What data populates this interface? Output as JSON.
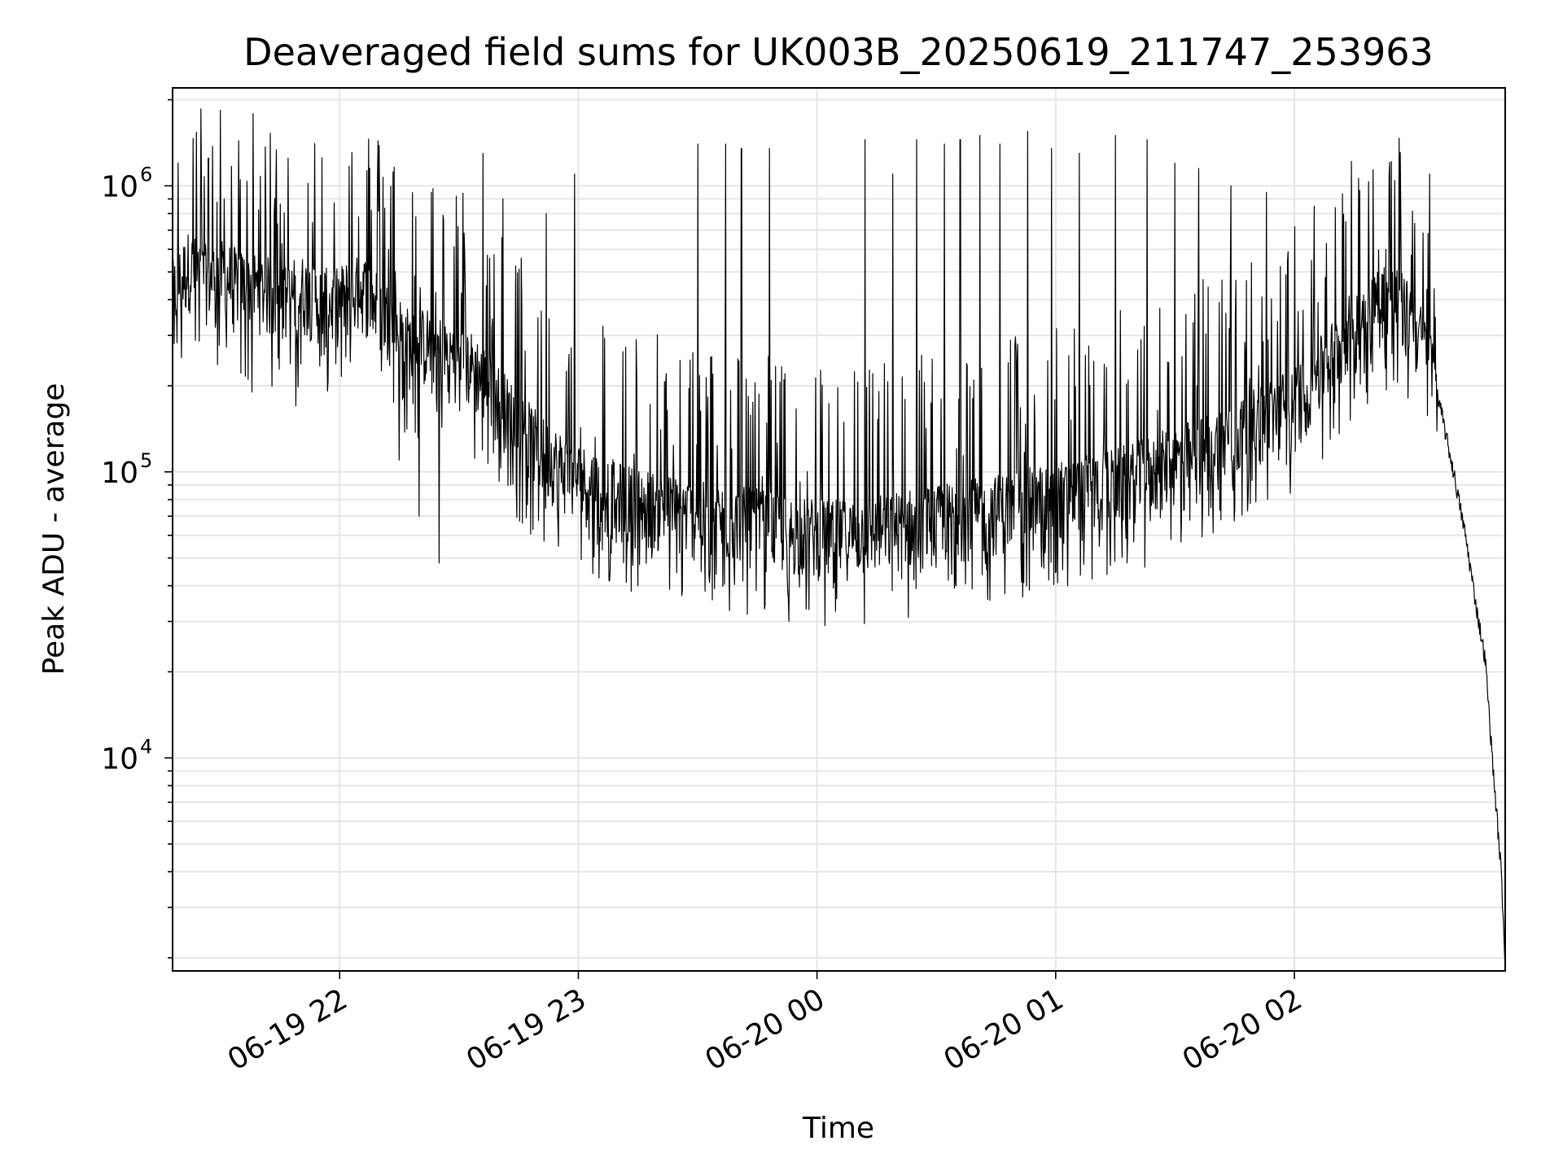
{
  "chart_data": {
    "type": "line",
    "title": "Deaveraged field sums for UK003B_20250619_211747_253963",
    "xlabel": "Time",
    "ylabel": "Peak ADU - average",
    "yscale": "log",
    "grid": true,
    "legend": "none",
    "line_color": "#000000",
    "grid_color": "#e6e6e6",
    "xlim": [
      "2025-06-19T21:18:00",
      "2025-06-20T02:53:00"
    ],
    "ylim": [
      1800,
      2200000
    ],
    "x_ticks": [
      {
        "value": "2025-06-19T22:00:00",
        "label": "06-19 22"
      },
      {
        "value": "2025-06-19T23:00:00",
        "label": "06-19 23"
      },
      {
        "value": "2025-06-20T00:00:00",
        "label": "06-20 00"
      },
      {
        "value": "2025-06-20T01:00:00",
        "label": "06-20 01"
      },
      {
        "value": "2025-06-20T02:00:00",
        "label": "06-20 02"
      }
    ],
    "y_ticks": [
      {
        "value": 10000,
        "base": "10",
        "exp": "4"
      },
      {
        "value": 100000,
        "base": "10",
        "exp": "5"
      },
      {
        "value": 1000000,
        "base": "10",
        "exp": "6"
      }
    ],
    "series": [
      {
        "values": [
          [
            "2025-06-19T21:18:00",
            380000
          ],
          [
            "2025-06-19T21:22:00",
            480000
          ],
          [
            "2025-06-19T21:26:00",
            430000
          ],
          [
            "2025-06-19T21:30:00",
            450000
          ],
          [
            "2025-06-19T21:34:00",
            420000
          ],
          [
            "2025-06-19T21:38:00",
            410000
          ],
          [
            "2025-06-19T21:42:00",
            390000
          ],
          [
            "2025-06-19T21:46:00",
            360000
          ],
          [
            "2025-06-19T21:50:00",
            400000
          ],
          [
            "2025-06-19T21:54:00",
            370000
          ],
          [
            "2025-06-19T21:58:00",
            350000
          ],
          [
            "2025-06-19T22:02:00",
            380000
          ],
          [
            "2025-06-19T22:06:00",
            400000
          ],
          [
            "2025-06-19T22:10:00",
            340000
          ],
          [
            "2025-06-19T22:14:00",
            300000
          ],
          [
            "2025-06-19T22:18:00",
            250000
          ],
          [
            "2025-06-19T22:22:00",
            260000
          ],
          [
            "2025-06-19T22:26:00",
            240000
          ],
          [
            "2025-06-19T22:30:00",
            230000
          ],
          [
            "2025-06-19T22:34:00",
            210000
          ],
          [
            "2025-06-19T22:38:00",
            180000
          ],
          [
            "2025-06-19T22:42:00",
            150000
          ],
          [
            "2025-06-19T22:46:00",
            130000
          ],
          [
            "2025-06-19T22:50:00",
            110000
          ],
          [
            "2025-06-19T22:54:00",
            100000
          ],
          [
            "2025-06-19T22:58:00",
            90000
          ],
          [
            "2025-06-19T23:02:00",
            85000
          ],
          [
            "2025-06-19T23:06:00",
            80000
          ],
          [
            "2025-06-19T23:10:00",
            75000
          ],
          [
            "2025-06-19T23:14:00",
            72000
          ],
          [
            "2025-06-19T23:18:00",
            70000
          ],
          [
            "2025-06-19T23:22:00",
            68000
          ],
          [
            "2025-06-19T23:26:00",
            66000
          ],
          [
            "2025-06-19T23:30:00",
            64000
          ],
          [
            "2025-06-19T23:34:00",
            63000
          ],
          [
            "2025-06-19T23:38:00",
            62000
          ],
          [
            "2025-06-19T23:42:00",
            61000
          ],
          [
            "2025-06-19T23:46:00",
            60000
          ],
          [
            "2025-06-19T23:50:00",
            58000
          ],
          [
            "2025-06-19T23:54:00",
            57000
          ],
          [
            "2025-06-19T23:58:00",
            56000
          ],
          [
            "2025-06-20T00:02:00",
            55000
          ],
          [
            "2025-06-20T00:06:00",
            55000
          ],
          [
            "2025-06-20T00:10:00",
            56000
          ],
          [
            "2025-06-20T00:14:00",
            57000
          ],
          [
            "2025-06-20T00:18:00",
            58000
          ],
          [
            "2025-06-20T00:22:00",
            60000
          ],
          [
            "2025-06-20T00:26:00",
            61000
          ],
          [
            "2025-06-20T00:30:00",
            62000
          ],
          [
            "2025-06-20T00:34:00",
            64000
          ],
          [
            "2025-06-20T00:38:00",
            65000
          ],
          [
            "2025-06-20T00:42:00",
            66000
          ],
          [
            "2025-06-20T00:46:00",
            68000
          ],
          [
            "2025-06-20T00:50:00",
            70000
          ],
          [
            "2025-06-20T00:54:00",
            72000
          ],
          [
            "2025-06-20T00:58:00",
            74000
          ],
          [
            "2025-06-20T01:02:00",
            76000
          ],
          [
            "2025-06-20T01:06:00",
            78000
          ],
          [
            "2025-06-20T01:10:00",
            80000
          ],
          [
            "2025-06-20T01:14:00",
            83000
          ],
          [
            "2025-06-20T01:18:00",
            86000
          ],
          [
            "2025-06-20T01:22:00",
            90000
          ],
          [
            "2025-06-20T01:26:00",
            95000
          ],
          [
            "2025-06-20T01:30:00",
            100000
          ],
          [
            "2025-06-20T01:34:00",
            105000
          ],
          [
            "2025-06-20T01:38:00",
            110000
          ],
          [
            "2025-06-20T01:42:00",
            118000
          ],
          [
            "2025-06-20T01:46:00",
            125000
          ],
          [
            "2025-06-20T01:50:00",
            135000
          ],
          [
            "2025-06-20T01:54:00",
            145000
          ],
          [
            "2025-06-20T01:58:00",
            158000
          ],
          [
            "2025-06-20T02:02:00",
            175000
          ],
          [
            "2025-06-20T02:06:00",
            200000
          ],
          [
            "2025-06-20T02:10:00",
            240000
          ],
          [
            "2025-06-20T02:14:00",
            290000
          ],
          [
            "2025-06-20T02:18:00",
            340000
          ],
          [
            "2025-06-20T02:22:00",
            380000
          ],
          [
            "2025-06-20T02:26:00",
            360000
          ],
          [
            "2025-06-20T02:30:00",
            300000
          ],
          [
            "2025-06-20T02:34:00",
            230000
          ],
          [
            "2025-06-20T02:37:00",
            160000
          ],
          [
            "2025-06-20T02:40:00",
            100000
          ],
          [
            "2025-06-20T02:43:00",
            60000
          ],
          [
            "2025-06-20T02:46:00",
            32000
          ],
          [
            "2025-06-20T02:48:00",
            22000
          ],
          [
            "2025-06-20T02:50:00",
            9000
          ],
          [
            "2025-06-20T02:52:00",
            4000
          ],
          [
            "2025-06-20T02:53:00",
            1900
          ]
        ],
        "spikes": [
          [
            "2025-06-19T21:27:00",
            1250000
          ],
          [
            "2025-06-19T21:31:00",
            900000
          ],
          [
            "2025-06-19T21:35:00",
            1050000
          ],
          [
            "2025-06-19T21:40:00",
            1080000
          ],
          [
            "2025-06-19T21:44:00",
            1000000
          ],
          [
            "2025-06-19T21:47:00",
            1250000
          ],
          [
            "2025-06-19T22:36:00",
            1300000
          ],
          [
            "2025-06-19T22:41:00",
            900000
          ],
          [
            "2025-06-19T22:52:00",
            800000
          ],
          [
            "2025-06-19T22:59:00",
            1100000
          ],
          [
            "2025-06-19T23:30:00",
            1400000
          ],
          [
            "2025-06-19T23:33:00",
            1450000
          ],
          [
            "2025-06-19T23:37:00",
            1400000
          ],
          [
            "2025-06-19T23:41:00",
            1350000
          ],
          [
            "2025-06-19T23:48:00",
            1350000
          ],
          [
            "2025-06-20T00:12:00",
            1450000
          ],
          [
            "2025-06-20T00:19:00",
            1100000
          ],
          [
            "2025-06-20T00:25:00",
            1450000
          ],
          [
            "2025-06-20T00:32:00",
            1400000
          ],
          [
            "2025-06-20T00:36:00",
            1450000
          ],
          [
            "2025-06-20T00:41:00",
            1500000
          ],
          [
            "2025-06-20T00:46:00",
            1400000
          ],
          [
            "2025-06-20T00:53:00",
            1550000
          ],
          [
            "2025-06-20T00:59:00",
            1350000
          ],
          [
            "2025-06-20T01:06:00",
            1300000
          ],
          [
            "2025-06-20T01:15:00",
            1500000
          ],
          [
            "2025-06-20T01:23:00",
            1450000
          ],
          [
            "2025-06-20T01:30:00",
            1200000
          ],
          [
            "2025-06-20T01:36:00",
            1150000
          ],
          [
            "2025-06-20T01:44:00",
            1000000
          ],
          [
            "2025-06-20T01:53:00",
            950000
          ],
          [
            "2025-06-20T02:05:00",
            850000
          ],
          [
            "2025-06-20T02:13:00",
            750000
          ],
          [
            "2025-06-20T02:23:00",
            600000
          ],
          [
            "2025-06-20T02:34:00",
            1100000
          ]
        ],
        "dips": [
          [
            "2025-06-19T21:38:00",
            190000
          ],
          [
            "2025-06-19T21:49:00",
            170000
          ],
          [
            "2025-06-19T22:15:00",
            110000
          ],
          [
            "2025-06-19T22:20:00",
            70000
          ],
          [
            "2025-06-19T22:25:00",
            48000
          ],
          [
            "2025-06-19T22:43:00",
            90000
          ],
          [
            "2025-06-19T22:55:00",
            55000
          ],
          [
            "2025-06-19T23:08:00",
            45000
          ],
          [
            "2025-06-19T23:15:00",
            40000
          ],
          [
            "2025-06-19T23:33:00",
            41000
          ],
          [
            "2025-06-19T23:53:00",
            30000
          ],
          [
            "2025-06-19T23:58:00",
            33000
          ],
          [
            "2025-06-20T00:05:00",
            36000
          ],
          [
            "2025-06-20T00:23:00",
            31000
          ],
          [
            "2025-06-20T00:35:00",
            40000
          ],
          [
            "2025-06-20T00:52:00",
            41000
          ],
          [
            "2025-06-20T01:03:00",
            40000
          ],
          [
            "2025-06-20T01:29:00",
            58000
          ],
          [
            "2025-06-20T01:39:00",
            75000
          ],
          [
            "2025-06-20T01:56:00",
            110000
          ],
          [
            "2025-06-20T02:09:00",
            130000
          ]
        ]
      }
    ]
  }
}
